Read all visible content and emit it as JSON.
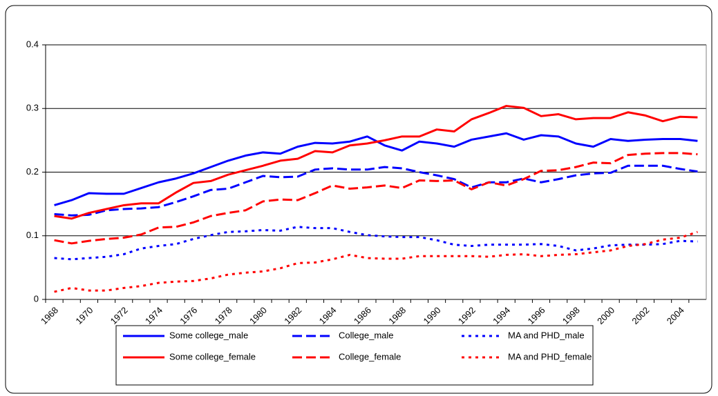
{
  "chart_data": {
    "type": "line",
    "categories": [
      "1968",
      null,
      "1970",
      null,
      "1972",
      null,
      "1974",
      null,
      "1976",
      null,
      "1978",
      null,
      "1980",
      null,
      "1982",
      null,
      "1984",
      null,
      "1986",
      null,
      "1988",
      null,
      "1990",
      null,
      "1992",
      null,
      "1994",
      null,
      "1996",
      null,
      "1998",
      null,
      "2000",
      null,
      "2002",
      null,
      "2004",
      null
    ],
    "series": [
      {
        "name": "Some college_male",
        "color": "#0000ff",
        "line_style": "solid",
        "values": [
          0.148,
          0.156,
          0.167,
          0.166,
          0.166,
          0.175,
          0.184,
          0.19,
          0.198,
          0.208,
          0.218,
          0.226,
          0.231,
          0.229,
          0.24,
          0.246,
          0.245,
          0.248,
          0.256,
          0.242,
          0.234,
          0.248,
          0.245,
          0.24,
          0.251,
          0.256,
          0.261,
          0.251,
          0.258,
          0.256,
          0.245,
          0.24,
          0.252,
          0.249,
          0.251,
          0.252,
          0.252,
          0.249
        ]
      },
      {
        "name": "College_male",
        "color": "#0000ff",
        "line_style": "dashed",
        "values": [
          0.134,
          0.132,
          0.133,
          0.14,
          0.142,
          0.143,
          0.145,
          0.153,
          0.162,
          0.172,
          0.174,
          0.184,
          0.194,
          0.192,
          0.193,
          0.204,
          0.206,
          0.204,
          0.204,
          0.208,
          0.206,
          0.2,
          0.195,
          0.189,
          0.176,
          0.184,
          0.184,
          0.19,
          0.184,
          0.189,
          0.195,
          0.198,
          0.199,
          0.21,
          0.21,
          0.21,
          0.205,
          0.201
        ]
      },
      {
        "name": "MA and PHD_male",
        "color": "#0000ff",
        "line_style": "dotted",
        "values": [
          0.065,
          0.063,
          0.065,
          0.067,
          0.071,
          0.08,
          0.084,
          0.087,
          0.095,
          0.101,
          0.106,
          0.107,
          0.109,
          0.108,
          0.114,
          0.112,
          0.112,
          0.106,
          0.101,
          0.099,
          0.098,
          0.098,
          0.093,
          0.086,
          0.084,
          0.086,
          0.086,
          0.086,
          0.087,
          0.084,
          0.077,
          0.08,
          0.085,
          0.086,
          0.086,
          0.087,
          0.092,
          0.091
        ]
      },
      {
        "name": "Some college_female",
        "color": "#ff0000",
        "line_style": "solid",
        "values": [
          0.131,
          0.127,
          0.136,
          0.142,
          0.148,
          0.151,
          0.151,
          0.168,
          0.183,
          0.186,
          0.196,
          0.203,
          0.21,
          0.218,
          0.221,
          0.233,
          0.231,
          0.242,
          0.245,
          0.25,
          0.256,
          0.256,
          0.267,
          0.264,
          0.283,
          0.293,
          0.304,
          0.301,
          0.288,
          0.291,
          0.283,
          0.285,
          0.285,
          0.294,
          0.289,
          0.28,
          0.287,
          0.286
        ]
      },
      {
        "name": "College_female",
        "color": "#ff0000",
        "line_style": "dashed",
        "values": [
          0.093,
          0.088,
          0.092,
          0.095,
          0.097,
          0.102,
          0.113,
          0.114,
          0.121,
          0.131,
          0.136,
          0.14,
          0.154,
          0.157,
          0.156,
          0.167,
          0.179,
          0.174,
          0.176,
          0.179,
          0.175,
          0.187,
          0.186,
          0.187,
          0.173,
          0.184,
          0.179,
          0.189,
          0.202,
          0.203,
          0.208,
          0.215,
          0.214,
          0.227,
          0.229,
          0.23,
          0.23,
          0.228
        ]
      },
      {
        "name": "MA and PHD_female",
        "color": "#ff0000",
        "line_style": "dotted",
        "values": [
          0.012,
          0.018,
          0.014,
          0.014,
          0.018,
          0.021,
          0.026,
          0.028,
          0.029,
          0.033,
          0.039,
          0.042,
          0.044,
          0.049,
          0.057,
          0.058,
          0.063,
          0.07,
          0.065,
          0.064,
          0.064,
          0.068,
          0.068,
          0.068,
          0.068,
          0.067,
          0.07,
          0.071,
          0.068,
          0.07,
          0.071,
          0.074,
          0.077,
          0.084,
          0.087,
          0.094,
          0.097,
          0.106
        ]
      }
    ],
    "ylim": [
      0,
      0.4
    ],
    "yticks": [
      0,
      0.1,
      0.2,
      0.3,
      0.4
    ],
    "grid": true,
    "legend": "bottom"
  }
}
